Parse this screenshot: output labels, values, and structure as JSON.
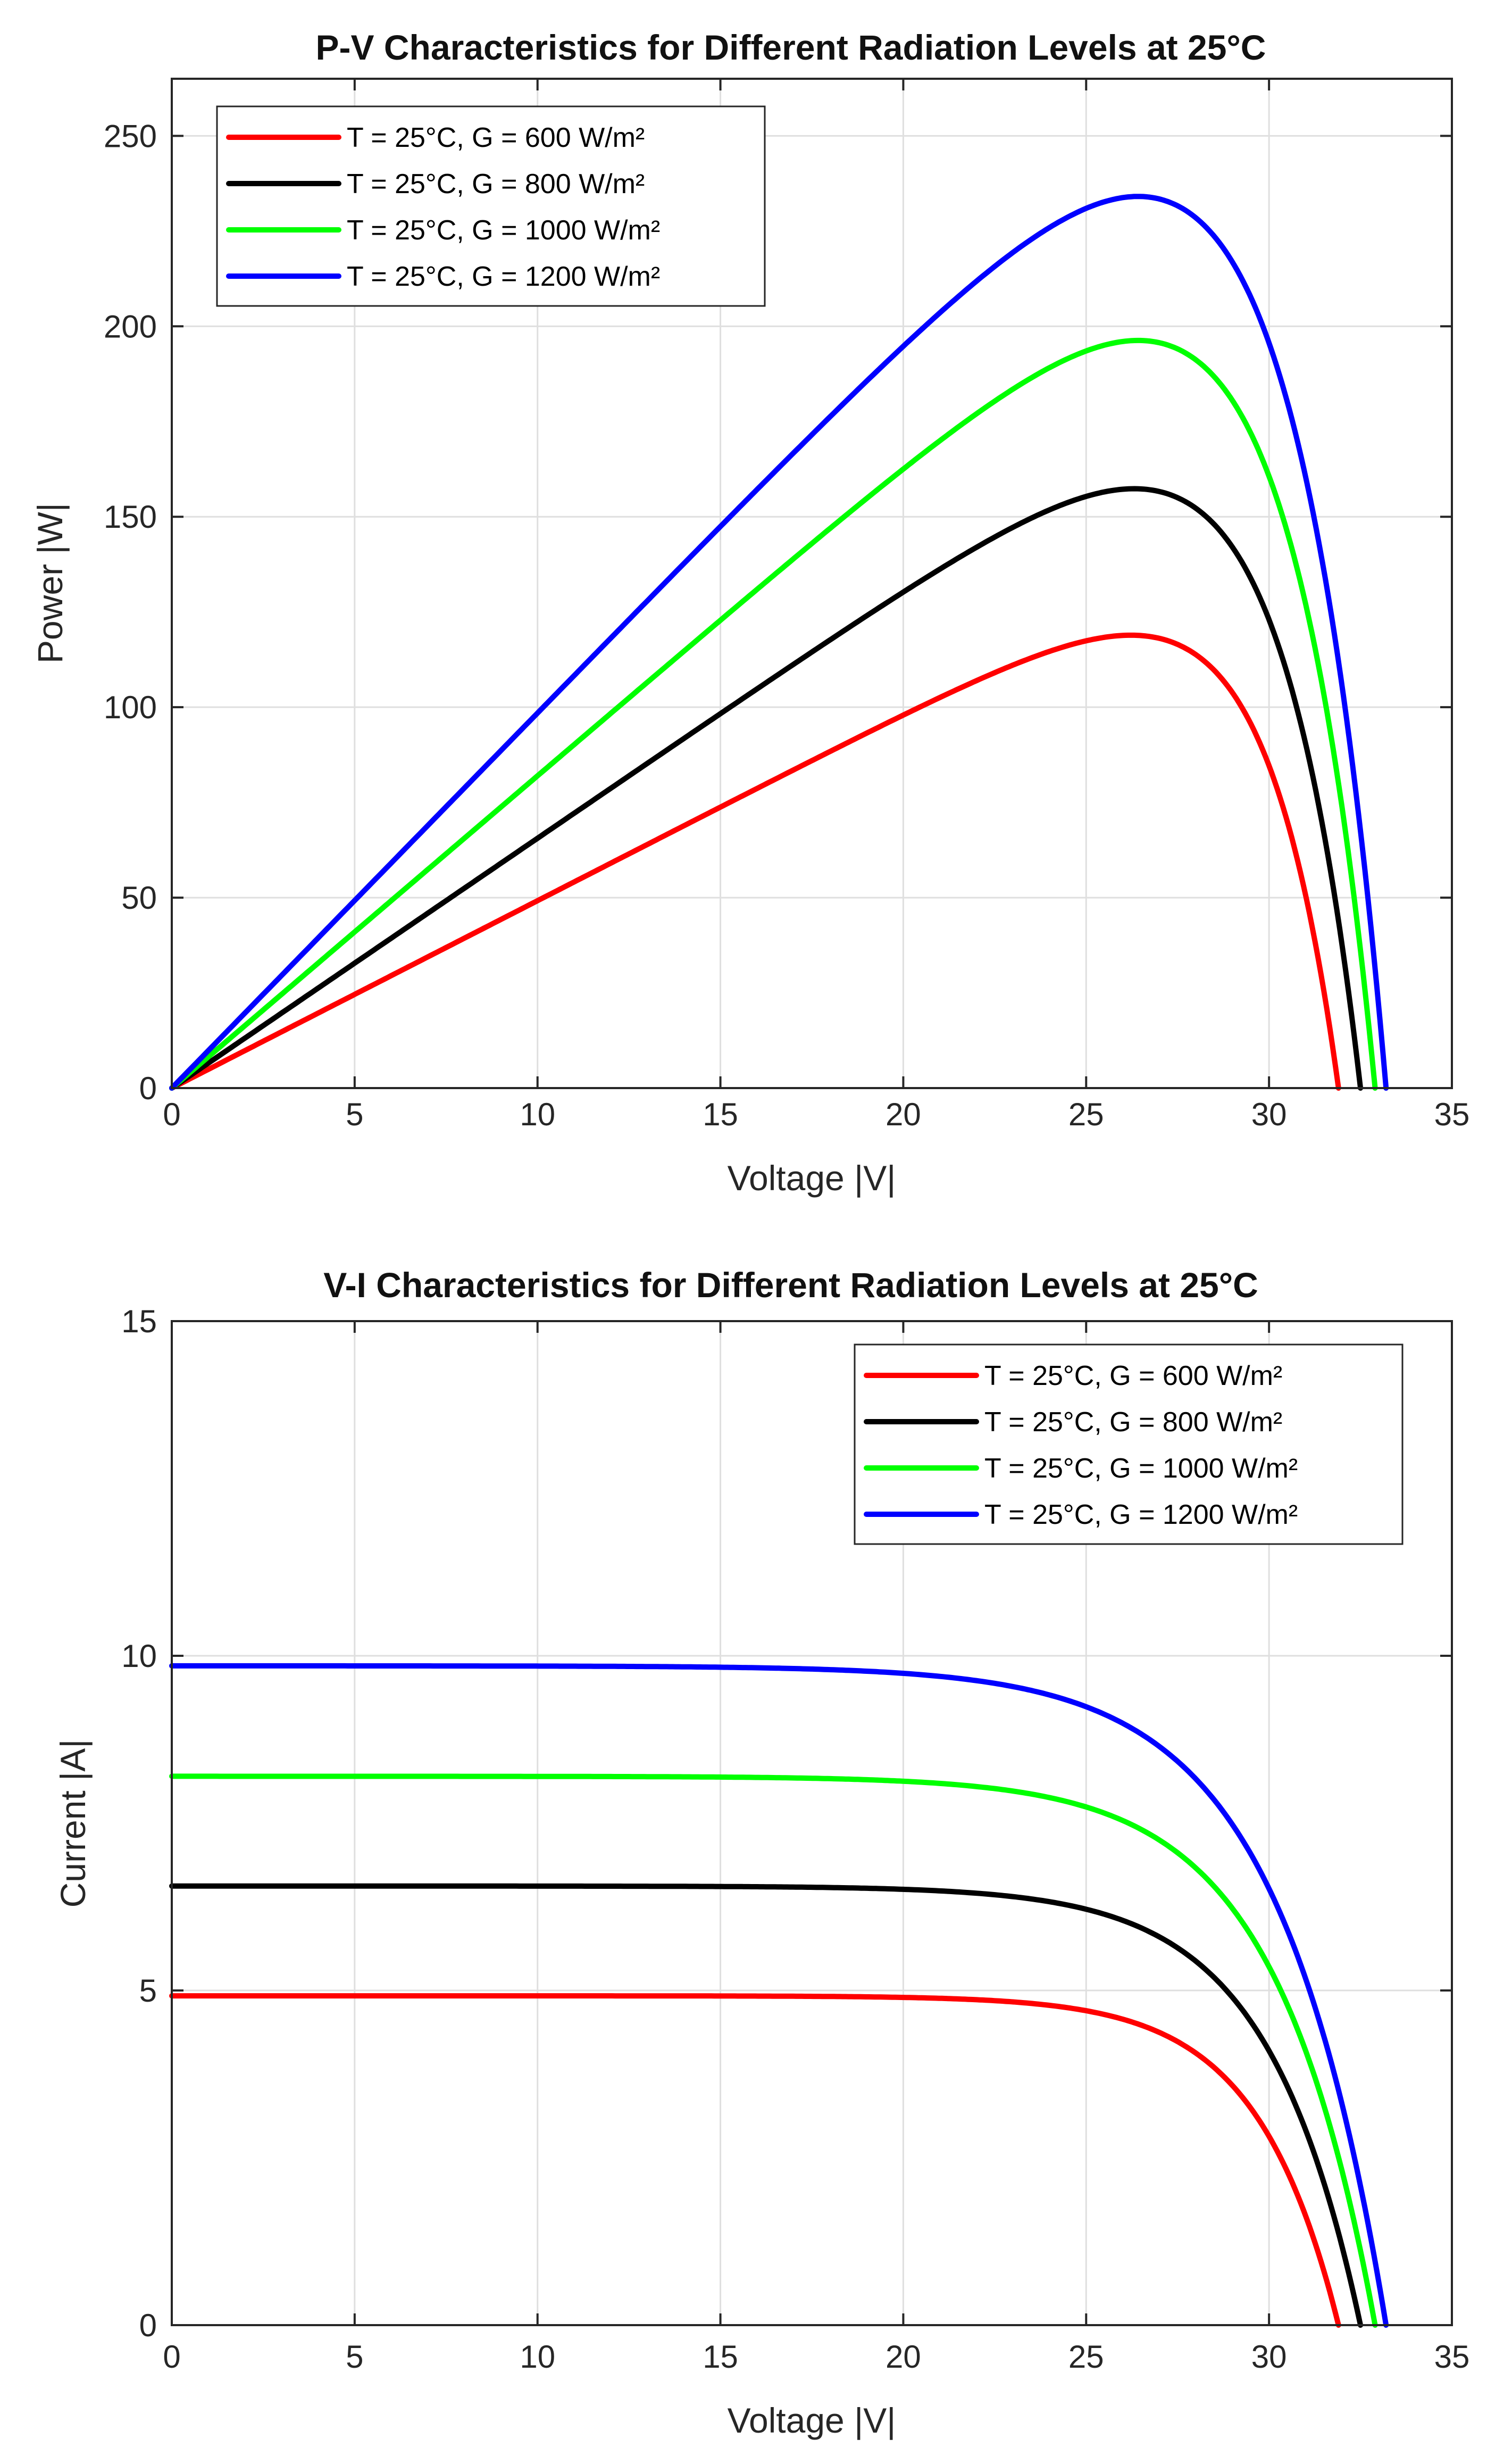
{
  "chart_data": [
    {
      "type": "line",
      "title": "P-V Characteristics for Different Radiation Levels at 25°C",
      "xlabel": "Voltage |V|",
      "ylabel": "Power |W|",
      "xlim": [
        0,
        35
      ],
      "ylim": [
        0,
        265
      ],
      "xticks": [
        0,
        5,
        10,
        15,
        20,
        25,
        30,
        35
      ],
      "yticks": [
        0,
        50,
        100,
        150,
        200,
        250
      ],
      "grid": true,
      "legend_position": "top-left",
      "series": [
        {
          "name": "T = 25°C, G = 600 W/m²",
          "color": "#ff0000",
          "isc": 4.92,
          "voc": 31.9,
          "vmp": 26.2,
          "pmax": 118.7
        },
        {
          "name": "T = 25°C, G = 800 W/m²",
          "color": "#000000",
          "isc": 6.56,
          "voc": 32.5,
          "vmp": 26.3,
          "pmax": 159.9
        },
        {
          "name": "T = 25°C, G = 1000 W/m²",
          "color": "#00ff00",
          "isc": 8.2,
          "voc": 32.9,
          "vmp": 26.4,
          "pmax": 200.8
        },
        {
          "name": "T = 25°C, G = 1200 W/m²",
          "color": "#0000ff",
          "isc": 9.85,
          "voc": 33.2,
          "vmp": 26.4,
          "pmax": 241.2
        }
      ]
    },
    {
      "type": "line",
      "title": "V-I Characteristics for Different Radiation Levels at 25°C",
      "xlabel": "Voltage |V|",
      "ylabel": "Current |A|",
      "xlim": [
        0,
        35
      ],
      "ylim": [
        0,
        15
      ],
      "xticks": [
        0,
        5,
        10,
        15,
        20,
        25,
        30,
        35
      ],
      "yticks": [
        0,
        5,
        10,
        15
      ],
      "grid": true,
      "legend_position": "top-right",
      "series": [
        {
          "name": "T = 25°C, G = 600 W/m²",
          "color": "#ff0000",
          "isc": 4.92,
          "voc": 31.9
        },
        {
          "name": "T = 25°C, G = 800 W/m²",
          "color": "#000000",
          "isc": 6.56,
          "voc": 32.5
        },
        {
          "name": "T = 25°C, G = 1000 W/m²",
          "color": "#00ff00",
          "isc": 8.2,
          "voc": 32.9
        },
        {
          "name": "T = 25°C, G = 1200 W/m²",
          "color": "#0000ff",
          "isc": 9.85,
          "voc": 33.2
        }
      ]
    }
  ]
}
